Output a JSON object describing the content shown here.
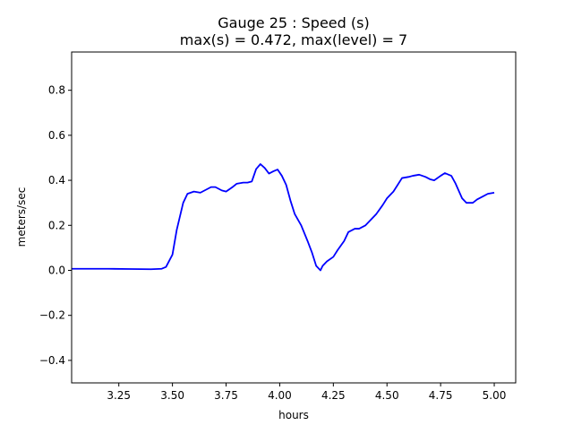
{
  "chart_data": {
    "type": "line",
    "title": "Gauge 25 : Speed (s)",
    "subtitle": "max(s) =   0.472,    max(level) = 7",
    "xlabel": "hours",
    "ylabel": "meters/sec",
    "xlim": [
      3.03,
      5.1
    ],
    "ylim": [
      -0.5,
      0.97
    ],
    "xticks": [
      3.25,
      3.5,
      3.75,
      4.0,
      4.25,
      4.5,
      4.75,
      5.0
    ],
    "xtick_labels": [
      "3.25",
      "3.50",
      "3.75",
      "4.00",
      "4.25",
      "4.50",
      "4.75",
      "5.00"
    ],
    "yticks": [
      -0.4,
      -0.2,
      0.0,
      0.2,
      0.4,
      0.6,
      0.8
    ],
    "ytick_labels": [
      "−0.4",
      "−0.2",
      "0.0",
      "0.2",
      "0.4",
      "0.6",
      "0.8"
    ],
    "grid": false,
    "series": [
      {
        "color": "#0000ff",
        "x": [
          3.03,
          3.1,
          3.2,
          3.3,
          3.4,
          3.45,
          3.47,
          3.5,
          3.52,
          3.55,
          3.57,
          3.6,
          3.63,
          3.65,
          3.68,
          3.7,
          3.73,
          3.75,
          3.78,
          3.8,
          3.83,
          3.85,
          3.87,
          3.89,
          3.91,
          3.93,
          3.95,
          3.97,
          3.99,
          4.01,
          4.03,
          4.05,
          4.07,
          4.1,
          4.13,
          4.15,
          4.17,
          4.19,
          4.2,
          4.22,
          4.25,
          4.27,
          4.3,
          4.32,
          4.35,
          4.37,
          4.4,
          4.43,
          4.45,
          4.48,
          4.5,
          4.53,
          4.55,
          4.57,
          4.6,
          4.62,
          4.65,
          4.68,
          4.7,
          4.72,
          4.75,
          4.77,
          4.8,
          4.82,
          4.85,
          4.87,
          4.9,
          4.92,
          4.95,
          4.97,
          5.0
        ],
        "y": [
          0.007,
          0.007,
          0.007,
          0.006,
          0.005,
          0.007,
          0.015,
          0.07,
          0.18,
          0.3,
          0.34,
          0.35,
          0.345,
          0.355,
          0.37,
          0.37,
          0.355,
          0.35,
          0.37,
          0.385,
          0.39,
          0.39,
          0.395,
          0.45,
          0.472,
          0.455,
          0.43,
          0.44,
          0.448,
          0.42,
          0.38,
          0.31,
          0.25,
          0.2,
          0.13,
          0.08,
          0.02,
          0.0,
          0.02,
          0.04,
          0.06,
          0.09,
          0.13,
          0.17,
          0.185,
          0.185,
          0.2,
          0.23,
          0.25,
          0.29,
          0.32,
          0.35,
          0.38,
          0.41,
          0.415,
          0.42,
          0.425,
          0.415,
          0.405,
          0.4,
          0.42,
          0.432,
          0.42,
          0.385,
          0.32,
          0.3,
          0.3,
          0.315,
          0.33,
          0.34,
          0.345
        ]
      }
    ]
  }
}
